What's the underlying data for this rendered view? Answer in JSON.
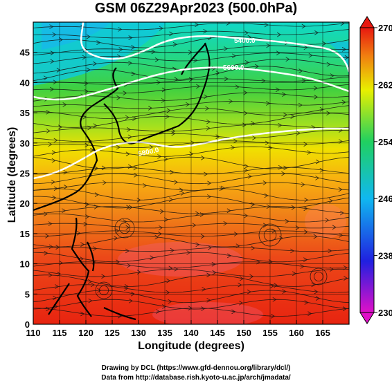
{
  "title": "GSM 06Z29Apr2023 (500.0hPa)",
  "x_axis": {
    "label": "Longitude (degrees)",
    "range": [
      110,
      170
    ],
    "ticks": [
      "110",
      "115",
      "120",
      "125",
      "130",
      "135",
      "140",
      "145",
      "150",
      "155",
      "160",
      "165"
    ]
  },
  "y_axis": {
    "label": "Latitude  (degrees)",
    "range": [
      0,
      50
    ],
    "ticks": [
      "0",
      "5",
      "10",
      "15",
      "20",
      "25",
      "30",
      "35",
      "40",
      "45"
    ]
  },
  "colorbar": {
    "range": [
      230,
      270
    ],
    "ticks": [
      "230",
      "238",
      "246",
      "254",
      "262",
      "270"
    ],
    "stops": [
      "#e010c8",
      "#2020e0",
      "#10b8f0",
      "#20d060",
      "#e8f000",
      "#f08010",
      "#e81810"
    ]
  },
  "contours": [
    {
      "label": "5400.0"
    },
    {
      "label": "5600.0"
    },
    {
      "label": "5800.0"
    }
  ],
  "credits": {
    "line1": "Drawing by DCL (https://www.gfd-dennou.org/library/dcl/)",
    "line2": "Data from http://database.rish.kyoto-u.ac.jp/arch/jmadata/"
  }
}
